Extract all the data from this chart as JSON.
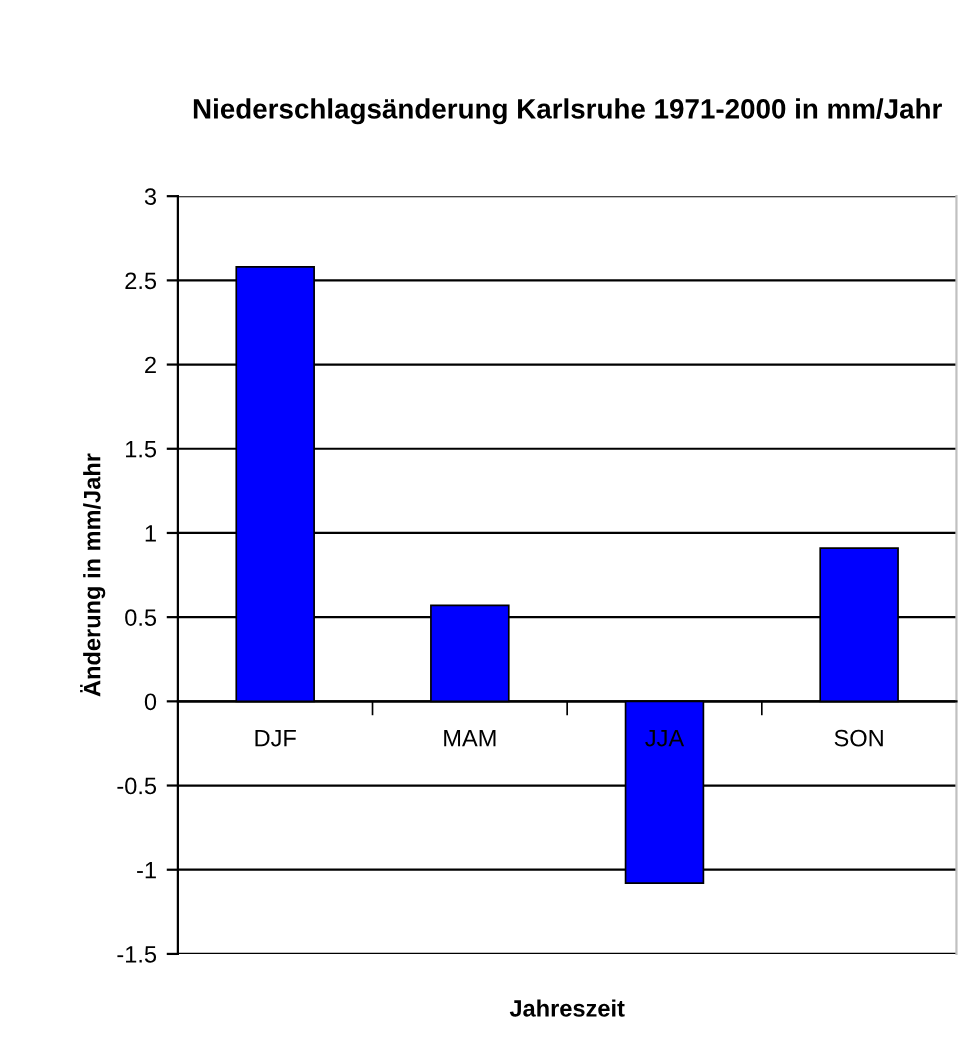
{
  "chart_data": {
    "type": "bar",
    "title": "Niederschlagsänderung Karlsruhe 1971-2000 in mm/Jahr",
    "xlabel": "Jahreszeit",
    "ylabel": "Änderung in mm/Jahr",
    "categories": [
      "DJF",
      "MAM",
      "JJA",
      "SON"
    ],
    "values": [
      2.58,
      0.57,
      -1.08,
      0.91
    ],
    "color": "#0000ff",
    "ylim": [
      -1.5,
      3
    ],
    "yticks": [
      -1.5,
      -1,
      -0.5,
      0,
      0.5,
      1,
      1.5,
      2,
      2.5,
      3
    ],
    "grid": "y"
  }
}
